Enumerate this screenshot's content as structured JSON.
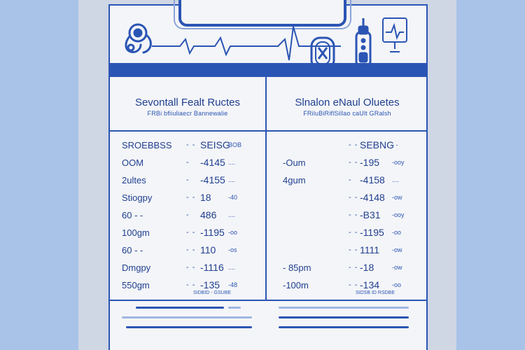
{
  "left": {
    "title": "Sevontall Fealt Ructes",
    "subtitle": "FRBi bfiiuliaecr Bannewalie",
    "rows": [
      {
        "label": "SROEBBSS",
        "dash": "- -",
        "value": "SEISG",
        "unit": "BOB"
      },
      {
        "label": "OOM",
        "dash": "-",
        "value": "-4145",
        "unit": "...."
      },
      {
        "label": "2ultes",
        "dash": "-",
        "value": "-4155",
        "unit": "...."
      },
      {
        "label": "Stiogpy",
        "dash": "- -",
        "value": "18",
        "unit": "-40"
      },
      {
        "label": "60 - -",
        "dash": "-",
        "value": "486",
        "unit": "...."
      },
      {
        "label": "100gm",
        "dash": "- -",
        "value": "-1195",
        "unit": "-oo"
      },
      {
        "label": "60 - -",
        "dash": "- -",
        "value": "110",
        "unit": "-os"
      },
      {
        "label": "Dmgpy",
        "dash": "- -",
        "value": "-1116",
        "unit": "...."
      },
      {
        "label": "550gm",
        "dash": "- -",
        "value": "-135",
        "unit": "-48"
      }
    ],
    "footer": "SIDBID - GSUBE"
  },
  "right": {
    "title": "Slnalon eNaul Oluetes",
    "subtitle": "FRiluBiRiflSillao caUlt GRalsh",
    "rows": [
      {
        "label": "",
        "dash": "- -",
        "value": "SEBNG",
        "unit": "- -"
      },
      {
        "label": "-Oum",
        "dash": "- -",
        "value": "-195",
        "unit": "-ooy"
      },
      {
        "label": "4gum",
        "dash": "-",
        "value": "-4158",
        "unit": "...."
      },
      {
        "label": "",
        "dash": "- -",
        "value": "-4148",
        "unit": "-ow"
      },
      {
        "label": "",
        "dash": "- -",
        "value": "-B31",
        "unit": "-ooy"
      },
      {
        "label": "",
        "dash": "- -",
        "value": "-1195",
        "unit": "-oo"
      },
      {
        "label": "",
        "dash": "- -",
        "value": "1111",
        "unit": "-ow"
      },
      {
        "label": "- 85pm",
        "dash": "- -",
        "value": "-18",
        "unit": "-ow"
      },
      {
        "label": "-100m",
        "dash": "- -",
        "value": "-134",
        "unit": "-oo"
      }
    ],
    "footer": "SIDSB ID RSDBE"
  },
  "icons": {
    "stethoscope": "stethoscope-icon",
    "heartbeat": "heartbeat-line-icon",
    "pill_pack": "pill-pack-icon",
    "injector": "injector-pen-icon",
    "iv_monitor": "iv-monitor-icon"
  },
  "colors": {
    "primary": "#2b55b4",
    "background": "#a8c2e8",
    "sheet": "#f4f5f8"
  }
}
